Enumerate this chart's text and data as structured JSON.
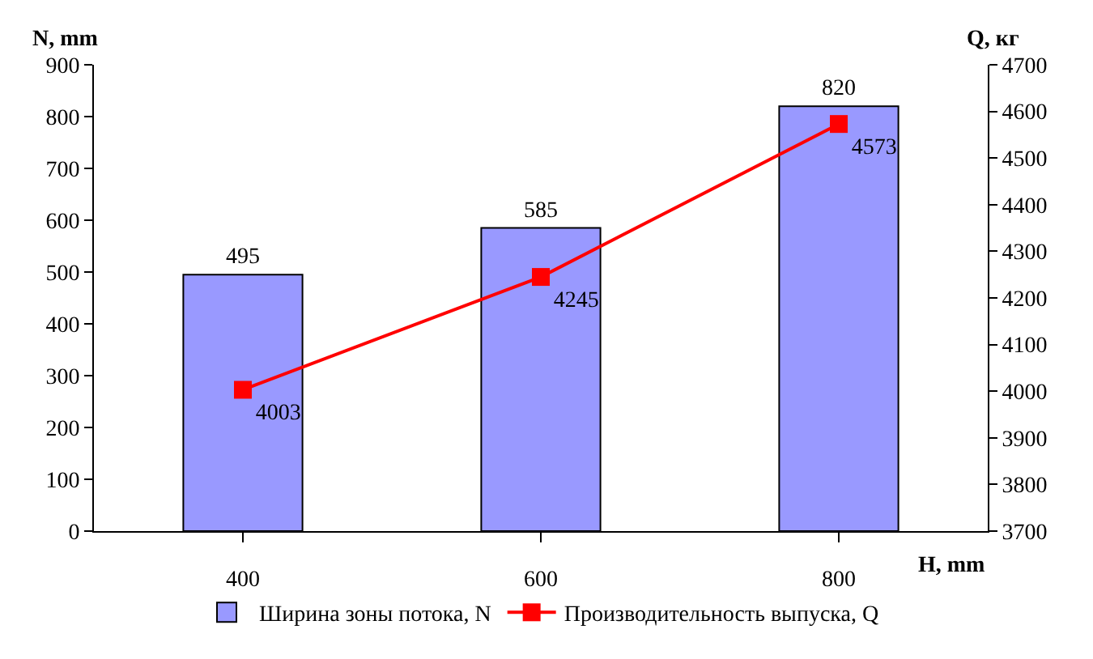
{
  "chart_data": {
    "type": "bar",
    "xlabel": "H, mm",
    "ylabel": "N, mm",
    "y2label": "Q, кг",
    "categories": [
      "400",
      "600",
      "800"
    ],
    "series": [
      {
        "name": "Ширина зоны потока, N",
        "color": "#9999ff",
        "values": [
          495,
          585,
          820
        ]
      },
      {
        "name": "Производительность выпуска, Q",
        "type": "line",
        "axis": "y2",
        "color": "#ff0000",
        "marker": "square",
        "values": [
          4003,
          4245,
          4573
        ]
      }
    ],
    "ylim": [
      0,
      900
    ],
    "yticks": [
      0,
      100,
      200,
      300,
      400,
      500,
      600,
      700,
      800,
      900
    ],
    "y2lim": [
      3700,
      4700
    ],
    "y2ticks": [
      3700,
      3800,
      3900,
      4000,
      4100,
      4200,
      4300,
      4400,
      4500,
      4600,
      4700
    ],
    "data_labels": true,
    "grid": false,
    "legend": "bottom"
  }
}
